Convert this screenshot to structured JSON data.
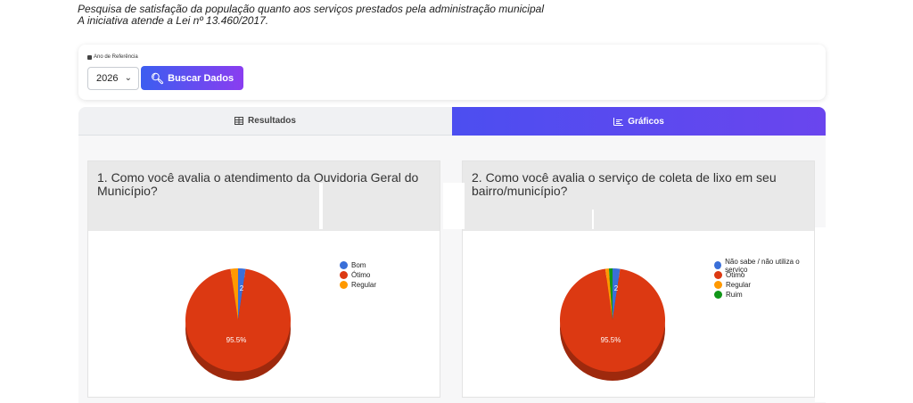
{
  "intro": {
    "line1": "Pesquisa de satisfação da população quanto aos serviços prestados pela administração municipal",
    "line2": "A iniciativa atende a Lei nº 13.460/2017."
  },
  "filter": {
    "label": "Ano de Referência",
    "label_icon": "calendar-icon",
    "year_value": "2026",
    "search_label": "Buscar Dados",
    "search_icon": "search-icon"
  },
  "tabs": [
    {
      "label": "Resultados",
      "icon": "table-icon",
      "active": false
    },
    {
      "label": "Gráficos",
      "icon": "chart-icon",
      "active": true
    }
  ],
  "colors": {
    "accent_start": "#3c5ef0",
    "accent_end": "#8a3df0",
    "blue": "#3a6fd8",
    "red": "#dc3912",
    "orange": "#ff9900",
    "green": "#109618"
  },
  "chart_data": [
    {
      "type": "pie",
      "title": "1. Como você avalia o atendimento da Ouvidoria Geral do Município?",
      "legend_placement": "right",
      "slices": [
        {
          "label": "Bom",
          "value": 2.3,
          "color": "#3a6fd8"
        },
        {
          "label": "Ótimo",
          "value": 95.5,
          "color": "#dc3912"
        },
        {
          "label": "Regular",
          "value": 2.3,
          "color": "#ff9900"
        }
      ],
      "data_labels": [
        "2",
        "95.5%"
      ]
    },
    {
      "type": "pie",
      "title": "2. Como você avalia o serviço de coleta de lixo em seu bairro/município?",
      "legend_placement": "right",
      "slices": [
        {
          "label": "Não sabe / não utiliza o serviço",
          "value": 2.3,
          "color": "#3a6fd8"
        },
        {
          "label": "Ótimo",
          "value": 95.5,
          "color": "#dc3912"
        },
        {
          "label": "Regular",
          "value": 1.1,
          "color": "#ff9900"
        },
        {
          "label": "Ruim",
          "value": 1.1,
          "color": "#109618"
        }
      ],
      "data_labels": [
        "2",
        "95.5%"
      ]
    }
  ]
}
